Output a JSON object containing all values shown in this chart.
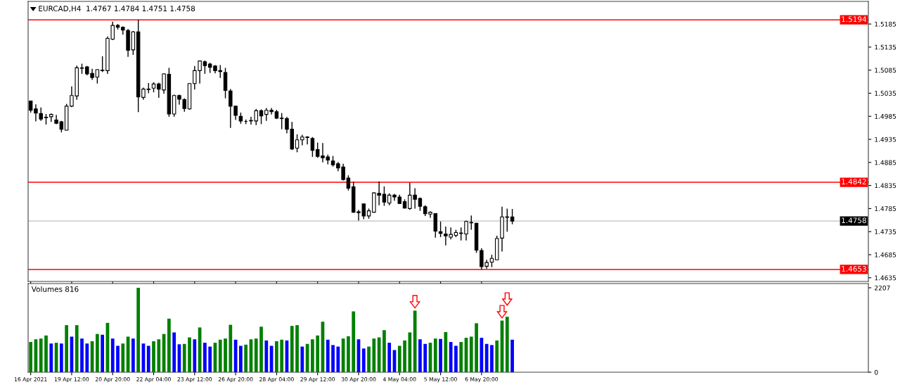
{
  "chart_data": [
    {
      "type": "candlestick",
      "title": "EURCAD,H4  1.4767 1.4784 1.4751 1.4758",
      "categories": [
        null,
        null,
        null,
        null,
        null,
        null,
        null,
        null,
        null,
        null,
        null,
        null,
        null,
        null,
        null,
        null,
        null,
        null,
        null,
        null,
        null,
        null,
        null,
        null,
        null,
        null,
        null,
        null,
        null,
        null,
        null,
        null,
        null,
        null,
        null,
        null,
        null,
        null,
        null,
        null,
        null,
        null,
        null,
        null,
        null,
        null,
        null,
        null,
        null,
        null,
        null,
        null,
        null,
        null,
        null,
        null,
        null,
        null,
        null,
        null,
        null,
        null,
        null,
        null,
        null,
        null,
        null,
        null,
        null,
        null,
        null,
        null,
        null,
        null,
        null,
        null,
        null,
        null,
        null,
        null,
        null,
        null,
        null,
        null,
        null,
        null,
        null,
        null,
        null,
        null,
        null,
        null,
        null,
        null,
        null,
        null,
        null,
        null,
        null,
        null,
        null,
        null,
        null,
        null,
        null,
        null,
        null,
        null,
        null,
        null,
        null,
        null,
        null,
        null,
        null,
        null,
        null,
        null,
        null,
        null,
        null,
        null,
        null,
        null,
        null,
        null,
        null,
        null,
        null,
        null,
        null,
        null,
        null,
        null,
        null,
        null,
        null,
        null,
        null,
        null,
        null,
        null,
        null,
        null,
        null,
        null,
        null,
        null,
        null,
        null,
        null,
        null,
        null,
        null,
        null,
        null,
        null,
        null,
        null,
        null,
        null,
        null,
        null,
        null
      ],
      "ohlc": [
        [
          1.5018,
          1.5019,
          1.4993,
          1.4998
        ],
        [
          1.5001,
          1.5011,
          1.4974,
          1.4992
        ],
        [
          1.4991,
          1.5004,
          1.4975,
          1.4979
        ],
        [
          1.4983,
          1.499,
          1.4967,
          1.4982
        ],
        [
          1.4984,
          1.4991,
          1.4973,
          1.4989
        ],
        [
          1.4977,
          1.4988,
          1.4968,
          1.497
        ],
        [
          1.4973,
          1.4975,
          1.495,
          1.4957
        ],
        [
          1.4955,
          1.5012,
          1.4954,
          1.5007
        ],
        [
          1.5007,
          1.505,
          1.5005,
          1.503
        ],
        [
          1.5029,
          1.5095,
          1.5021,
          1.509
        ],
        [
          1.5089,
          1.5099,
          1.5077,
          1.509
        ],
        [
          1.5092,
          1.5094,
          1.5074,
          1.5077
        ],
        [
          1.5078,
          1.5088,
          1.5064,
          1.5069
        ],
        [
          1.507,
          1.5087,
          1.5056,
          1.5086
        ],
        [
          1.5084,
          1.5115,
          1.5081,
          1.5085
        ],
        [
          1.5084,
          1.5158,
          1.5077,
          1.5154
        ],
        [
          1.5152,
          1.519,
          1.515,
          1.5182
        ],
        [
          1.5182,
          1.5185,
          1.5173,
          1.5178
        ],
        [
          1.5178,
          1.518,
          1.5162,
          1.5172
        ],
        [
          1.5171,
          1.5174,
          1.5114,
          1.5128
        ],
        [
          1.5129,
          1.517,
          1.5118,
          1.5168
        ],
        [
          1.5168,
          1.5194,
          1.4994,
          1.5027
        ],
        [
          1.5026,
          1.5047,
          1.5021,
          1.5044
        ],
        [
          1.5043,
          1.5057,
          1.5035,
          1.5044
        ],
        [
          1.5046,
          1.5059,
          1.5037,
          1.5055
        ],
        [
          1.5055,
          1.5058,
          1.5025,
          1.5044
        ],
        [
          1.5042,
          1.5078,
          1.5034,
          1.5077
        ],
        [
          1.5076,
          1.509,
          1.4984,
          1.499
        ],
        [
          1.499,
          1.5032,
          1.4984,
          1.503
        ],
        [
          1.503,
          1.5032,
          1.501,
          1.5022
        ],
        [
          1.5021,
          1.5024,
          1.4995,
          1.5002
        ],
        [
          1.5001,
          1.5057,
          1.4999,
          1.5056
        ],
        [
          1.5056,
          1.5094,
          1.5043,
          1.5084
        ],
        [
          1.5084,
          1.5106,
          1.5056,
          1.5105
        ],
        [
          1.5103,
          1.5106,
          1.5077,
          1.5095
        ],
        [
          1.5098,
          1.5101,
          1.5079,
          1.5091
        ],
        [
          1.5094,
          1.5096,
          1.5078,
          1.5084
        ],
        [
          1.5084,
          1.5096,
          1.5068,
          1.5082
        ],
        [
          1.508,
          1.509,
          1.5024,
          1.5041
        ],
        [
          1.504,
          1.5044,
          1.496,
          1.5007
        ],
        [
          1.5007,
          1.5008,
          1.4977,
          1.4987
        ],
        [
          1.4985,
          1.4993,
          1.4969,
          1.4975
        ],
        [
          1.4974,
          1.4978,
          1.4968,
          1.4974
        ],
        [
          1.4975,
          1.4984,
          1.4967,
          1.4976
        ],
        [
          1.4975,
          1.5001,
          1.4966,
          1.4997
        ],
        [
          1.4997,
          1.5,
          1.4968,
          1.4986
        ],
        [
          1.4989,
          1.5003,
          1.4975,
          1.4998
        ],
        [
          1.4998,
          1.5003,
          1.4989,
          1.4995
        ],
        [
          1.4995,
          1.4999,
          1.4979,
          1.4981
        ],
        [
          1.4981,
          1.4992,
          1.4957,
          1.498
        ],
        [
          1.498,
          1.4984,
          1.4948,
          1.4957
        ],
        [
          1.4957,
          1.4973,
          1.4912,
          1.4914
        ],
        [
          1.4916,
          1.4946,
          1.4907,
          1.4934
        ],
        [
          1.4934,
          1.4945,
          1.4922,
          1.494
        ],
        [
          1.494,
          1.4942,
          1.4924,
          1.4939
        ],
        [
          1.4937,
          1.494,
          1.4897,
          1.4911
        ],
        [
          1.4913,
          1.4928,
          1.4895,
          1.4898
        ],
        [
          1.4899,
          1.4927,
          1.4885,
          1.4895
        ],
        [
          1.4897,
          1.4902,
          1.4881,
          1.489
        ],
        [
          1.4888,
          1.4899,
          1.4876,
          1.488
        ],
        [
          1.4882,
          1.4886,
          1.4866,
          1.4873
        ],
        [
          1.4875,
          1.4882,
          1.4846,
          1.4848
        ],
        [
          1.4851,
          1.4857,
          1.4824,
          1.4829
        ],
        [
          1.4832,
          1.4843,
          1.4776,
          1.4777
        ],
        [
          1.4778,
          1.4782,
          1.4759,
          1.4776
        ],
        [
          1.4795,
          1.4796,
          1.4762,
          1.4769
        ],
        [
          1.4769,
          1.4785,
          1.4763,
          1.478
        ],
        [
          1.4777,
          1.482,
          1.4776,
          1.4819
        ],
        [
          1.4818,
          1.4844,
          1.4792,
          1.4814
        ],
        [
          1.4816,
          1.4833,
          1.4791,
          1.4799
        ],
        [
          1.4797,
          1.4818,
          1.4792,
          1.4814
        ],
        [
          1.4814,
          1.4817,
          1.4802,
          1.481
        ],
        [
          1.481,
          1.4815,
          1.4795,
          1.4796
        ],
        [
          1.48,
          1.4805,
          1.4785,
          1.4786
        ],
        [
          1.4785,
          1.4841,
          1.4782,
          1.4814
        ],
        [
          1.4814,
          1.4829,
          1.4785,
          1.4805
        ],
        [
          1.4807,
          1.4809,
          1.478,
          1.479
        ],
        [
          1.4789,
          1.4792,
          1.4769,
          1.4774
        ],
        [
          1.4773,
          1.4779,
          1.4765,
          1.4777
        ],
        [
          1.4774,
          1.4775,
          1.4722,
          1.4736
        ],
        [
          1.4735,
          1.4757,
          1.4723,
          1.4731
        ],
        [
          1.473,
          1.4746,
          1.4705,
          1.4726
        ],
        [
          1.4723,
          1.4744,
          1.4718,
          1.4729
        ],
        [
          1.4727,
          1.4739,
          1.4723,
          1.4733
        ],
        [
          1.4731,
          1.4744,
          1.4716,
          1.4732
        ],
        [
          1.473,
          1.4759,
          1.4716,
          1.4757
        ],
        [
          1.4754,
          1.477,
          1.4739,
          1.4755
        ],
        [
          1.4753,
          1.4754,
          1.4689,
          1.4695
        ],
        [
          1.4694,
          1.4699,
          1.4653,
          1.4659
        ],
        [
          1.466,
          1.4674,
          1.4655,
          1.4668
        ],
        [
          1.4669,
          1.4685,
          1.4658,
          1.4677
        ],
        [
          1.4674,
          1.4726,
          1.4673,
          1.472
        ],
        [
          1.4721,
          1.4789,
          1.4692,
          1.4767
        ],
        [
          1.4767,
          1.4785,
          1.4735,
          1.4766
        ],
        [
          1.4767,
          1.4784,
          1.4751,
          1.4758
        ],
        null,
        null,
        null,
        null,
        null,
        null,
        null,
        null,
        null,
        null,
        null,
        null,
        null,
        null,
        null,
        null,
        null,
        null,
        null,
        null,
        null,
        null,
        null,
        null,
        null,
        null,
        null,
        null,
        null,
        null,
        null,
        null,
        null,
        null,
        null,
        null,
        null,
        null,
        null,
        null,
        null,
        null,
        null,
        null,
        null,
        null,
        null,
        null,
        null,
        null,
        null,
        null,
        null,
        null,
        null,
        null,
        null,
        null,
        null,
        null,
        null,
        null,
        null,
        null,
        null,
        null,
        null,
        null,
        null
      ],
      "ylim": [
        1.4627,
        1.5234
      ],
      "yticks": [
        1.4635,
        1.4685,
        1.4735,
        1.4785,
        1.4835,
        1.4885,
        1.4935,
        1.4985,
        1.5035,
        1.5085,
        1.5135,
        1.5185
      ],
      "ref_lines": [
        {
          "axis": "y",
          "value": 1.5194,
          "label": "1.5194",
          "color": "#ff0000"
        },
        {
          "axis": "y",
          "value": 1.4842,
          "label": "1.4842",
          "color": "#ff0000"
        },
        {
          "axis": "y",
          "value": 1.4758,
          "label": "1.4758",
          "color": "#c0c0c0"
        },
        {
          "axis": "y",
          "value": 1.4653,
          "label": "1.4653",
          "color": "#ff0000"
        }
      ],
      "tick_labels": "y",
      "grid": false,
      "legend": false
    },
    {
      "type": "bar",
      "categories": [
        "16 Apr 2021",
        null,
        null,
        null,
        null,
        null,
        null,
        null,
        "19 Apr 12:00",
        null,
        null,
        null,
        null,
        null,
        null,
        null,
        "20 Apr 20:00",
        null,
        null,
        null,
        null,
        null,
        null,
        null,
        "22 Apr 04:00",
        null,
        null,
        null,
        null,
        null,
        null,
        null,
        "23 Apr 12:00",
        null,
        null,
        null,
        null,
        null,
        null,
        null,
        "26 Apr 20:00",
        null,
        null,
        null,
        null,
        null,
        null,
        null,
        "28 Apr 04:00",
        null,
        null,
        null,
        null,
        null,
        null,
        null,
        "29 Apr 12:00",
        null,
        null,
        null,
        null,
        null,
        null,
        null,
        "30 Apr 20:00",
        null,
        null,
        null,
        null,
        null,
        null,
        null,
        "4 May 04:00",
        null,
        null,
        null,
        null,
        null,
        null,
        null,
        "5 May 12:00",
        null,
        null,
        null,
        null,
        null,
        null,
        null,
        "6 May 20:00",
        null,
        null,
        null,
        null,
        null,
        null,
        null,
        null,
        null,
        null,
        null,
        null,
        null,
        null,
        null,
        null,
        null,
        null,
        null,
        null,
        null,
        null,
        null,
        null,
        null,
        null,
        null,
        null,
        null,
        null,
        null,
        null,
        null,
        null,
        null,
        null,
        null,
        null,
        null,
        null,
        null,
        null,
        null,
        null,
        null,
        null,
        null,
        null,
        null,
        null,
        null,
        null,
        null,
        null,
        null,
        null,
        null,
        null,
        null,
        null,
        null,
        null,
        null,
        null,
        null,
        null,
        null,
        null,
        null,
        null,
        null,
        null,
        null,
        null,
        null
      ],
      "values": [
        790,
        860,
        880,
        960,
        750,
        770,
        750,
        1230,
        930,
        1230,
        880,
        750,
        810,
        1000,
        980,
        1290,
        880,
        690,
        750,
        930,
        880,
        2207,
        750,
        690,
        810,
        860,
        1000,
        1400,
        1040,
        730,
        740,
        910,
        860,
        1170,
        770,
        670,
        770,
        850,
        880,
        1240,
        850,
        690,
        720,
        860,
        880,
        1190,
        830,
        690,
        810,
        850,
        830,
        1210,
        1230,
        670,
        740,
        860,
        960,
        1320,
        850,
        710,
        670,
        880,
        940,
        1590,
        860,
        620,
        670,
        880,
        910,
        1100,
        770,
        580,
        690,
        830,
        1040,
        1610,
        860,
        740,
        770,
        880,
        870,
        1050,
        790,
        690,
        790,
        900,
        930,
        1280,
        900,
        740,
        710,
        830,
        1350,
        1450,
        850,
        null,
        null,
        null,
        null,
        null,
        null,
        null,
        null,
        null,
        null,
        null,
        null,
        null,
        null,
        null,
        null,
        null,
        null,
        null,
        null,
        null,
        null,
        null,
        null,
        null,
        null,
        null,
        null,
        null,
        null,
        null,
        null,
        null,
        null,
        null,
        null,
        null,
        null,
        null,
        null,
        null,
        null,
        null,
        null,
        null,
        null,
        null,
        null,
        null,
        null,
        null,
        null,
        null,
        null,
        null,
        null,
        null,
        null,
        null,
        null,
        null,
        null,
        null,
        null,
        null,
        null,
        null,
        null,
        null
      ],
      "colors": [
        "#008000",
        "#008000",
        "#008000",
        "#008000",
        "#0000ff",
        "#008000",
        "#0000ff",
        "#008000",
        "#0000ff",
        "#008000",
        "#0000ff",
        "#0000ff",
        "#008000",
        "#008000",
        "#0000ff",
        "#008000",
        "#0000ff",
        "#0000ff",
        "#008000",
        "#008000",
        "#0000ff",
        "#008000",
        "#0000ff",
        "#0000ff",
        "#008000",
        "#008000",
        "#008000",
        "#008000",
        "#0000ff",
        "#0000ff",
        "#008000",
        "#008000",
        "#0000ff",
        "#008000",
        "#0000ff",
        "#0000ff",
        "#008000",
        "#008000",
        "#008000",
        "#008000",
        "#0000ff",
        "#0000ff",
        "#008000",
        "#008000",
        "#008000",
        "#008000",
        "#0000ff",
        "#0000ff",
        "#008000",
        "#008000",
        "#0000ff",
        "#008000",
        "#008000",
        "#0000ff",
        "#008000",
        "#008000",
        "#008000",
        "#008000",
        "#0000ff",
        "#0000ff",
        "#0000ff",
        "#008000",
        "#008000",
        "#008000",
        "#0000ff",
        "#0000ff",
        "#008000",
        "#008000",
        "#008000",
        "#008000",
        "#0000ff",
        "#0000ff",
        "#008000",
        "#008000",
        "#008000",
        "#008000",
        "#0000ff",
        "#0000ff",
        "#008000",
        "#008000",
        "#0000ff",
        "#008000",
        "#0000ff",
        "#0000ff",
        "#008000",
        "#008000",
        "#008000",
        "#008000",
        "#0000ff",
        "#0000ff",
        "#0000ff",
        "#008000",
        "#008000",
        "#008000",
        "#0000ff",
        null,
        null,
        null,
        null,
        null,
        null,
        null,
        null,
        null,
        null,
        null,
        null,
        null,
        null,
        null,
        null,
        null,
        null,
        null,
        null,
        null,
        null,
        null,
        null,
        null,
        null,
        null,
        null,
        null,
        null,
        null,
        null,
        null,
        null,
        null,
        null,
        null,
        null,
        null,
        null,
        null,
        null,
        null,
        null,
        null,
        null,
        null,
        null,
        null,
        null,
        null,
        null,
        null,
        null,
        null,
        null,
        null,
        null,
        null,
        null,
        null,
        null,
        null,
        null,
        null,
        null,
        null,
        null,
        null
      ],
      "ylim": [
        0,
        2317
      ],
      "yticks": [
        0,
        2207
      ],
      "annotations": [
        "Volumes 816"
      ],
      "grid": false,
      "legend": false
    }
  ]
}
